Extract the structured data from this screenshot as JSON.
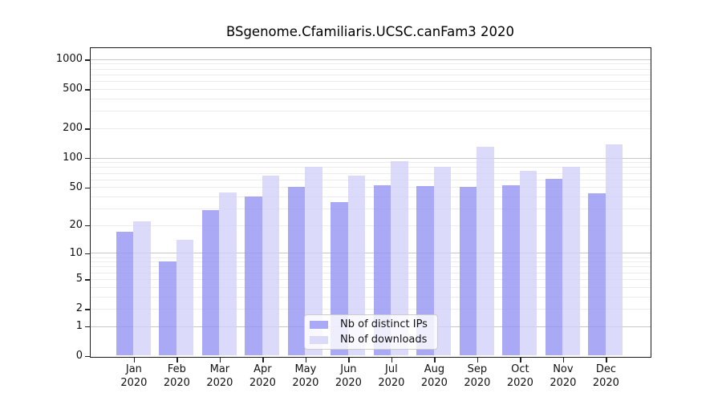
{
  "chart_data": {
    "type": "bar",
    "title": "BSgenome.Cfamiliaris.UCSC.canFam3 2020",
    "categories": [
      "Jan",
      "Feb",
      "Mar",
      "Apr",
      "May",
      "Jun",
      "Jul",
      "Aug",
      "Sep",
      "Oct",
      "Nov",
      "Dec"
    ],
    "category_year": "2020",
    "series": [
      {
        "name": "Nb of distinct IPs",
        "color": "#a9a9f6",
        "fill": "rgba(148,148,244,0.8)",
        "values": [
          17,
          8,
          29,
          40,
          50,
          35,
          52,
          51,
          50,
          52,
          61,
          43
        ]
      },
      {
        "name": "Nb of downloads",
        "color": "#dbdaf8",
        "fill": "rgba(211,209,250,0.8)",
        "values": [
          22,
          14,
          44,
          66,
          80,
          65,
          93,
          80,
          130,
          73,
          80,
          137
        ]
      }
    ],
    "yscale": "log1p",
    "y_ticks": [
      0,
      1,
      2,
      5,
      10,
      20,
      50,
      100,
      200,
      500,
      1000
    ],
    "ylim": [
      0,
      1300
    ],
    "grid": true,
    "legend_position": "lower center"
  },
  "colors": {
    "grid_major": "#c7c7c7",
    "grid_minor": "#ececec",
    "spine": "#1a1a1a",
    "text": "#111111"
  }
}
